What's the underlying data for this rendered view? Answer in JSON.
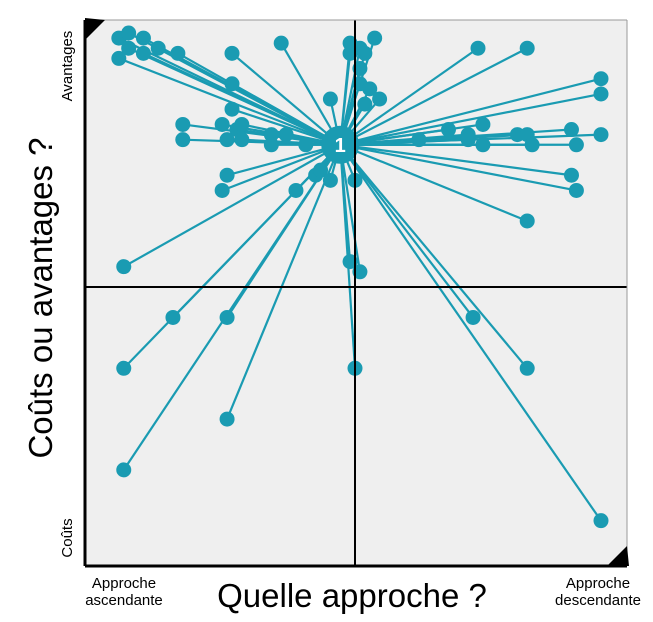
{
  "chart_data": {
    "type": "scatter",
    "xlabel": "Quelle approche ?",
    "ylabel": "Coûts ou avantages ?",
    "x_tick_labels": {
      "min": [
        "Approche",
        "ascendante"
      ],
      "max": [
        "Approche",
        "descendante"
      ]
    },
    "y_tick_labels": {
      "min": "Coûts",
      "max": "Avantages"
    },
    "xlim": [
      0,
      1
    ],
    "ylim": [
      0,
      1
    ],
    "center_lines": {
      "x": 0.5,
      "y": 0.5
    },
    "grid": false,
    "hub": {
      "label": "1",
      "x": 0.47,
      "y": 0.78
    },
    "colors": {
      "points": "#1a9bb2",
      "lines": "#1a9bb2",
      "plot_bg": "#efefef",
      "axes": "#000000"
    },
    "points": [
      {
        "x": 0.02,
        "y": 0.99
      },
      {
        "x": 0.04,
        "y": 0.97
      },
      {
        "x": 0.04,
        "y": 1.0
      },
      {
        "x": 0.07,
        "y": 0.99
      },
      {
        "x": 0.1,
        "y": 0.97
      },
      {
        "x": 0.02,
        "y": 0.95
      },
      {
        "x": 0.07,
        "y": 0.96
      },
      {
        "x": 0.14,
        "y": 0.96
      },
      {
        "x": 0.35,
        "y": 0.98
      },
      {
        "x": 0.25,
        "y": 0.96
      },
      {
        "x": 0.49,
        "y": 0.98
      },
      {
        "x": 0.51,
        "y": 0.97
      },
      {
        "x": 0.54,
        "y": 0.99
      },
      {
        "x": 0.49,
        "y": 0.96
      },
      {
        "x": 0.52,
        "y": 0.96
      },
      {
        "x": 0.51,
        "y": 0.93
      },
      {
        "x": 0.51,
        "y": 0.9
      },
      {
        "x": 0.53,
        "y": 0.89
      },
      {
        "x": 0.55,
        "y": 0.87
      },
      {
        "x": 0.52,
        "y": 0.86
      },
      {
        "x": 0.45,
        "y": 0.87
      },
      {
        "x": 0.75,
        "y": 0.97
      },
      {
        "x": 0.85,
        "y": 0.97
      },
      {
        "x": 0.25,
        "y": 0.9
      },
      {
        "x": 0.25,
        "y": 0.85
      },
      {
        "x": 0.15,
        "y": 0.82
      },
      {
        "x": 0.15,
        "y": 0.79
      },
      {
        "x": 0.23,
        "y": 0.82
      },
      {
        "x": 0.26,
        "y": 0.81
      },
      {
        "x": 0.27,
        "y": 0.82
      },
      {
        "x": 0.33,
        "y": 0.8
      },
      {
        "x": 0.36,
        "y": 0.8
      },
      {
        "x": 0.24,
        "y": 0.79
      },
      {
        "x": 0.27,
        "y": 0.79
      },
      {
        "x": 0.33,
        "y": 0.78
      },
      {
        "x": 0.4,
        "y": 0.78
      },
      {
        "x": 0.45,
        "y": 0.77
      },
      {
        "x": 0.46,
        "y": 0.8
      },
      {
        "x": 0.69,
        "y": 0.81
      },
      {
        "x": 0.63,
        "y": 0.79
      },
      {
        "x": 0.73,
        "y": 0.8
      },
      {
        "x": 0.83,
        "y": 0.8
      },
      {
        "x": 0.76,
        "y": 0.82
      },
      {
        "x": 0.85,
        "y": 0.8
      },
      {
        "x": 0.73,
        "y": 0.79
      },
      {
        "x": 0.76,
        "y": 0.78
      },
      {
        "x": 0.86,
        "y": 0.78
      },
      {
        "x": 0.94,
        "y": 0.81
      },
      {
        "x": 0.95,
        "y": 0.78
      },
      {
        "x": 1.0,
        "y": 0.8
      },
      {
        "x": 1.0,
        "y": 0.88
      },
      {
        "x": 1.0,
        "y": 0.91
      },
      {
        "x": 0.24,
        "y": 0.72
      },
      {
        "x": 0.23,
        "y": 0.69
      },
      {
        "x": 0.38,
        "y": 0.69
      },
      {
        "x": 0.42,
        "y": 0.72
      },
      {
        "x": 0.43,
        "y": 0.73
      },
      {
        "x": 0.45,
        "y": 0.71
      },
      {
        "x": 0.5,
        "y": 0.71
      },
      {
        "x": 0.94,
        "y": 0.72
      },
      {
        "x": 0.95,
        "y": 0.69
      },
      {
        "x": 0.85,
        "y": 0.63
      },
      {
        "x": 0.03,
        "y": 0.54
      },
      {
        "x": 0.49,
        "y": 0.55
      },
      {
        "x": 0.51,
        "y": 0.53
      },
      {
        "x": 0.13,
        "y": 0.44
      },
      {
        "x": 0.24,
        "y": 0.44
      },
      {
        "x": 0.74,
        "y": 0.44
      },
      {
        "x": 0.03,
        "y": 0.34
      },
      {
        "x": 0.5,
        "y": 0.34
      },
      {
        "x": 0.85,
        "y": 0.34
      },
      {
        "x": 0.24,
        "y": 0.24
      },
      {
        "x": 0.03,
        "y": 0.14
      },
      {
        "x": 1.0,
        "y": 0.04
      }
    ]
  }
}
